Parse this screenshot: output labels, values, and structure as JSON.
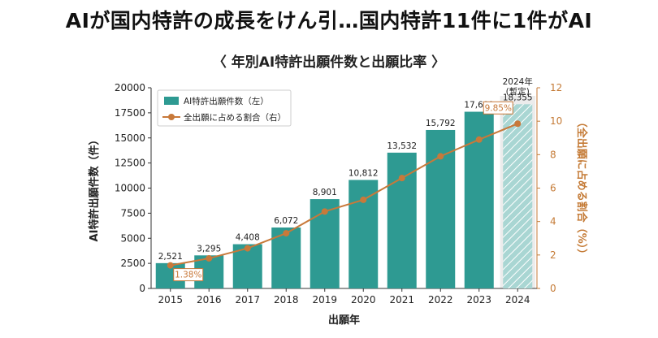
{
  "header": {
    "headline": "AIが国内特許の成長をけん引…国内特許11件に1件がAI",
    "subtitle": "〈 年別AI特許出願件数と出願比率 〉"
  },
  "colors": {
    "bar": "#2e9a92",
    "bar_provisional": "#a9d6d3",
    "line": "#c8793a",
    "highlight_bg": "#ececec"
  },
  "chart_data": {
    "type": "bar",
    "categories": [
      "2015",
      "2016",
      "2017",
      "2018",
      "2019",
      "2020",
      "2021",
      "2022",
      "2023",
      "2024"
    ],
    "series": [
      {
        "name": "AI特許出願件数（左）",
        "axis": "left",
        "values": [
          2521,
          3295,
          4408,
          6072,
          8901,
          10812,
          13532,
          15792,
          17609,
          18355
        ],
        "labels": [
          "2,521",
          "3,295",
          "4,408",
          "6,072",
          "8,901",
          "10,812",
          "13,532",
          "15,792",
          "17,609",
          "18,355"
        ]
      },
      {
        "name": "全出願に占める割合（右）",
        "axis": "right",
        "type": "line",
        "values": [
          1.38,
          1.8,
          2.4,
          3.3,
          4.6,
          5.3,
          6.6,
          7.9,
          8.9,
          9.85
        ],
        "highlight_labels": [
          {
            "index": 0,
            "text": "1.38%"
          },
          {
            "index": 9,
            "text": "9.85%"
          }
        ]
      }
    ],
    "provisional_label": "2024年\n(暫定)",
    "xlabel": "出願年",
    "ylabel": "AI特許出願件数（件）",
    "y2label": "（全出願に占める割合（%））",
    "ylim": [
      0,
      20000
    ],
    "y_ticks": [
      0,
      2500,
      5000,
      7500,
      10000,
      12500,
      15000,
      17500,
      20000
    ],
    "y2lim": [
      0,
      12
    ],
    "y2_ticks": [
      0,
      2,
      4,
      6,
      8,
      10,
      12
    ],
    "legend_position": "top-left",
    "grid": false
  }
}
